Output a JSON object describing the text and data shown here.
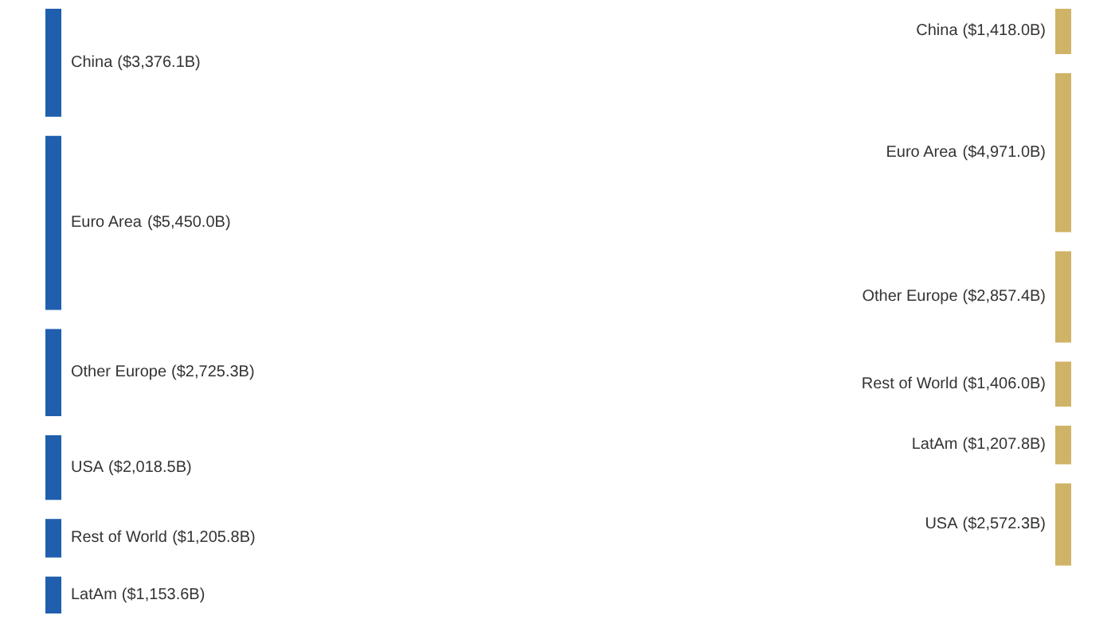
{
  "chart_data": [
    {
      "type": "other",
      "color": "#1f5fae",
      "categories": [
        "China",
        "Euro Area",
        "Other Europe",
        "USA",
        "Rest of World",
        "LatAm"
      ],
      "values": [
        3376.1,
        5450.0,
        2725.3,
        2018.5,
        1205.8,
        1153.6
      ],
      "value_labels": [
        "($3,376.1B)",
        "($5,450.0B)",
        "($2,725.3B)",
        "($2,018.5B)",
        "($1,205.8B)",
        "($1,153.6B)"
      ]
    },
    {
      "type": "other",
      "color": "#cfb467",
      "categories": [
        "China",
        "Euro Area",
        "Other Europe",
        "Rest of World",
        "LatAm",
        "USA"
      ],
      "values": [
        1418.0,
        4971.0,
        2857.4,
        1406.0,
        1207.8,
        2572.3
      ],
      "value_labels": [
        "($1,418.0B)",
        "($4,971.0B)",
        "($2,857.4B)",
        "($1,406.0B)",
        "($1,207.8B)",
        "($2,572.3B)"
      ]
    }
  ]
}
